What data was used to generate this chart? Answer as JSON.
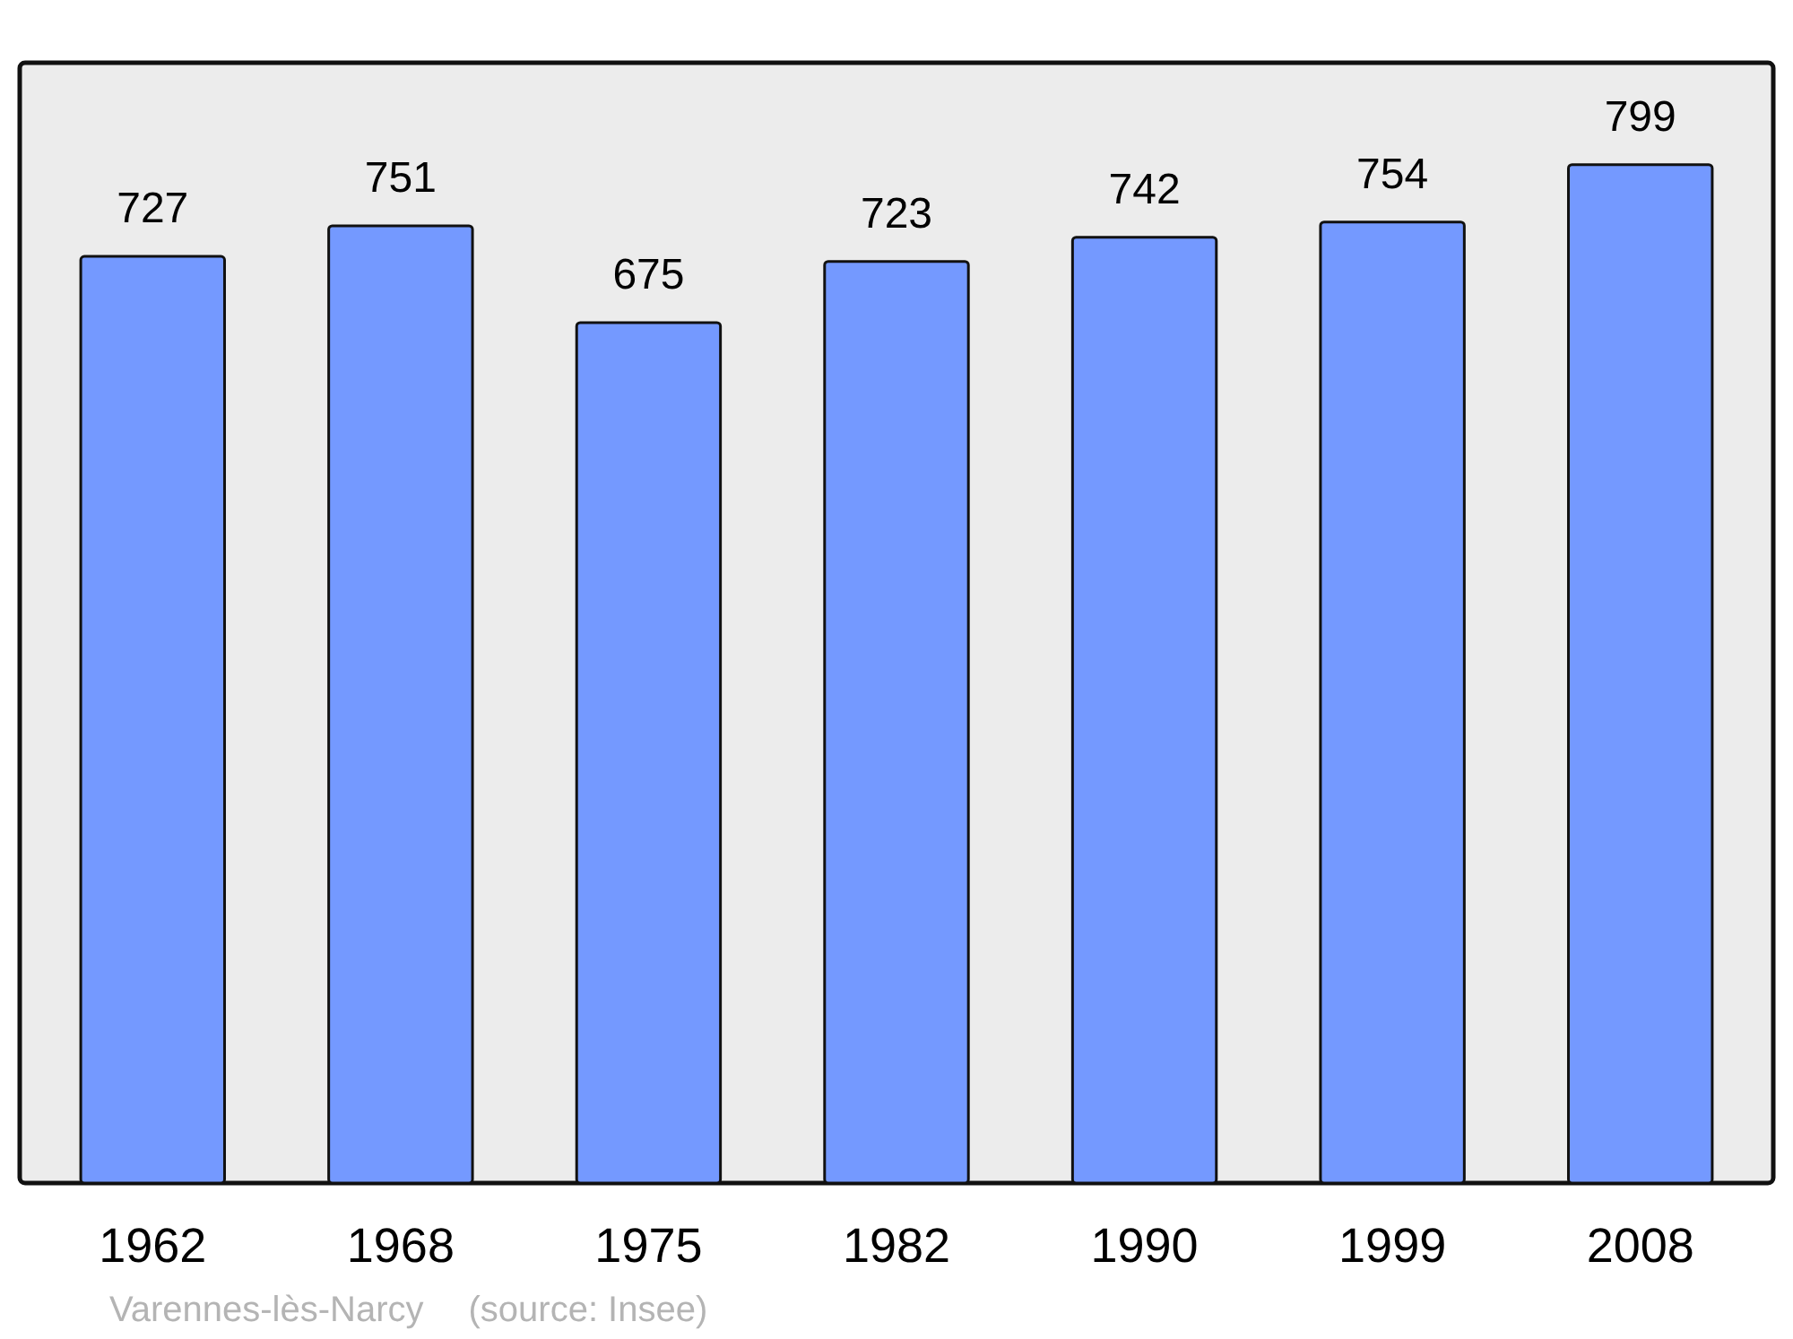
{
  "chart_data": {
    "type": "bar",
    "categories": [
      "1962",
      "1968",
      "1975",
      "1982",
      "1990",
      "1999",
      "2008"
    ],
    "values": [
      727,
      751,
      675,
      723,
      742,
      754,
      799
    ],
    "color": "#7499ff",
    "data_labels": true,
    "annotations": [
      "Varennes-lès-Narcy",
      "(source: Insee)"
    ]
  }
}
